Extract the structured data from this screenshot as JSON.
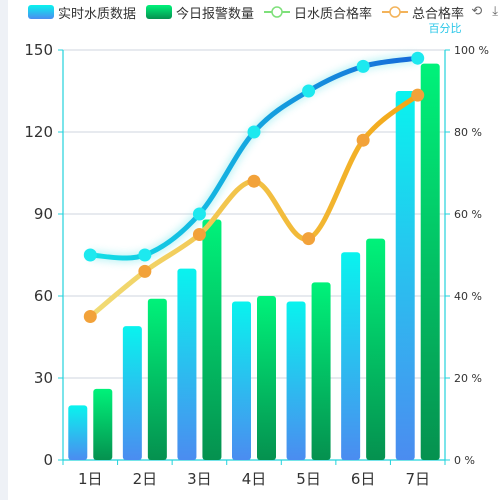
{
  "legend": [
    {
      "label": "实时水质数据",
      "kind": "bar",
      "color": "#18b7e6"
    },
    {
      "label": "今日报警数量",
      "kind": "bar",
      "color": "#0fa86a"
    },
    {
      "label": "日水质合格率",
      "kind": "line",
      "color": "#7ee07a"
    },
    {
      "label": "总合格率",
      "kind": "line",
      "color": "#f3b35a"
    }
  ],
  "toolbar": {
    "restore_icon": "restore-icon",
    "download_icon": "download-icon"
  },
  "chart_data": {
    "type": "bar",
    "categories": [
      "1日",
      "2日",
      "3日",
      "4日",
      "5日",
      "6日",
      "7日"
    ],
    "series": [
      {
        "name": "实时水质数据",
        "type": "bar",
        "axis": "left",
        "values": [
          20,
          49,
          70,
          58,
          58,
          76,
          135
        ]
      },
      {
        "name": "今日报警数量",
        "type": "bar",
        "axis": "left",
        "values": [
          26,
          59,
          88,
          60,
          65,
          81,
          145
        ]
      },
      {
        "name": "日水质合格率",
        "type": "line",
        "axis": "right",
        "values": [
          50,
          50,
          60,
          80,
          90,
          96,
          98
        ]
      },
      {
        "name": "总合格率",
        "type": "line",
        "axis": "right",
        "values": [
          35,
          46,
          55,
          68,
          54,
          78,
          89
        ]
      }
    ],
    "yaxis_left": {
      "min": 0,
      "max": 150,
      "ticks": [
        "0",
        "30",
        "60",
        "90",
        "120",
        "150"
      ]
    },
    "yaxis_right": {
      "min": 0,
      "max": 100,
      "name": "百分比",
      "ticks": [
        "0 %",
        "20 %",
        "40 %",
        "60 %",
        "80 %",
        "100 %"
      ]
    },
    "grid": true
  }
}
